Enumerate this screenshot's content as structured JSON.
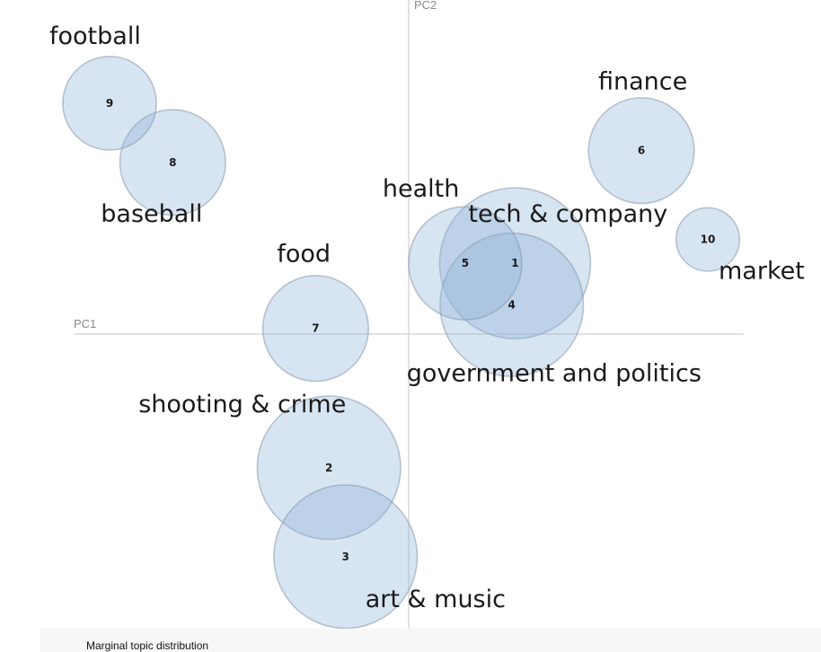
{
  "chart_data": {
    "type": "scatter",
    "xlabel": "PC1",
    "ylabel": "PC2",
    "grid": false,
    "xlim": [
      -10,
      10
    ],
    "ylim": [
      -10,
      10
    ],
    "bubble_color": "#8db1d6",
    "points": [
      {
        "id": "1",
        "label": "tech & company",
        "x": 3.2,
        "y": 2.3,
        "size": 1.0
      },
      {
        "id": "2",
        "label": "shooting & crime",
        "x": -2.4,
        "y": -4.6,
        "size": 0.95
      },
      {
        "id": "3",
        "label": "art & music",
        "x": -1.9,
        "y": -7.6,
        "size": 0.95
      },
      {
        "id": "4",
        "label": "government and politics",
        "x": 3.1,
        "y": 0.9,
        "size": 0.95
      },
      {
        "id": "5",
        "label": "health",
        "x": 1.7,
        "y": 2.3,
        "size": 0.75
      },
      {
        "id": "6",
        "label": "finance",
        "x": 7.0,
        "y": 6.1,
        "size": 0.7
      },
      {
        "id": "7",
        "label": "food",
        "x": -2.8,
        "y": 0.1,
        "size": 0.7
      },
      {
        "id": "8",
        "label": "baseball",
        "x": -7.1,
        "y": 5.7,
        "size": 0.7
      },
      {
        "id": "9",
        "label": "football",
        "x": -9.0,
        "y": 7.7,
        "size": 0.62
      },
      {
        "id": "10",
        "label": "market",
        "x": 9.0,
        "y": 3.1,
        "size": 0.42
      }
    ]
  },
  "footer": {
    "caption": "Marginal topic distribution"
  }
}
